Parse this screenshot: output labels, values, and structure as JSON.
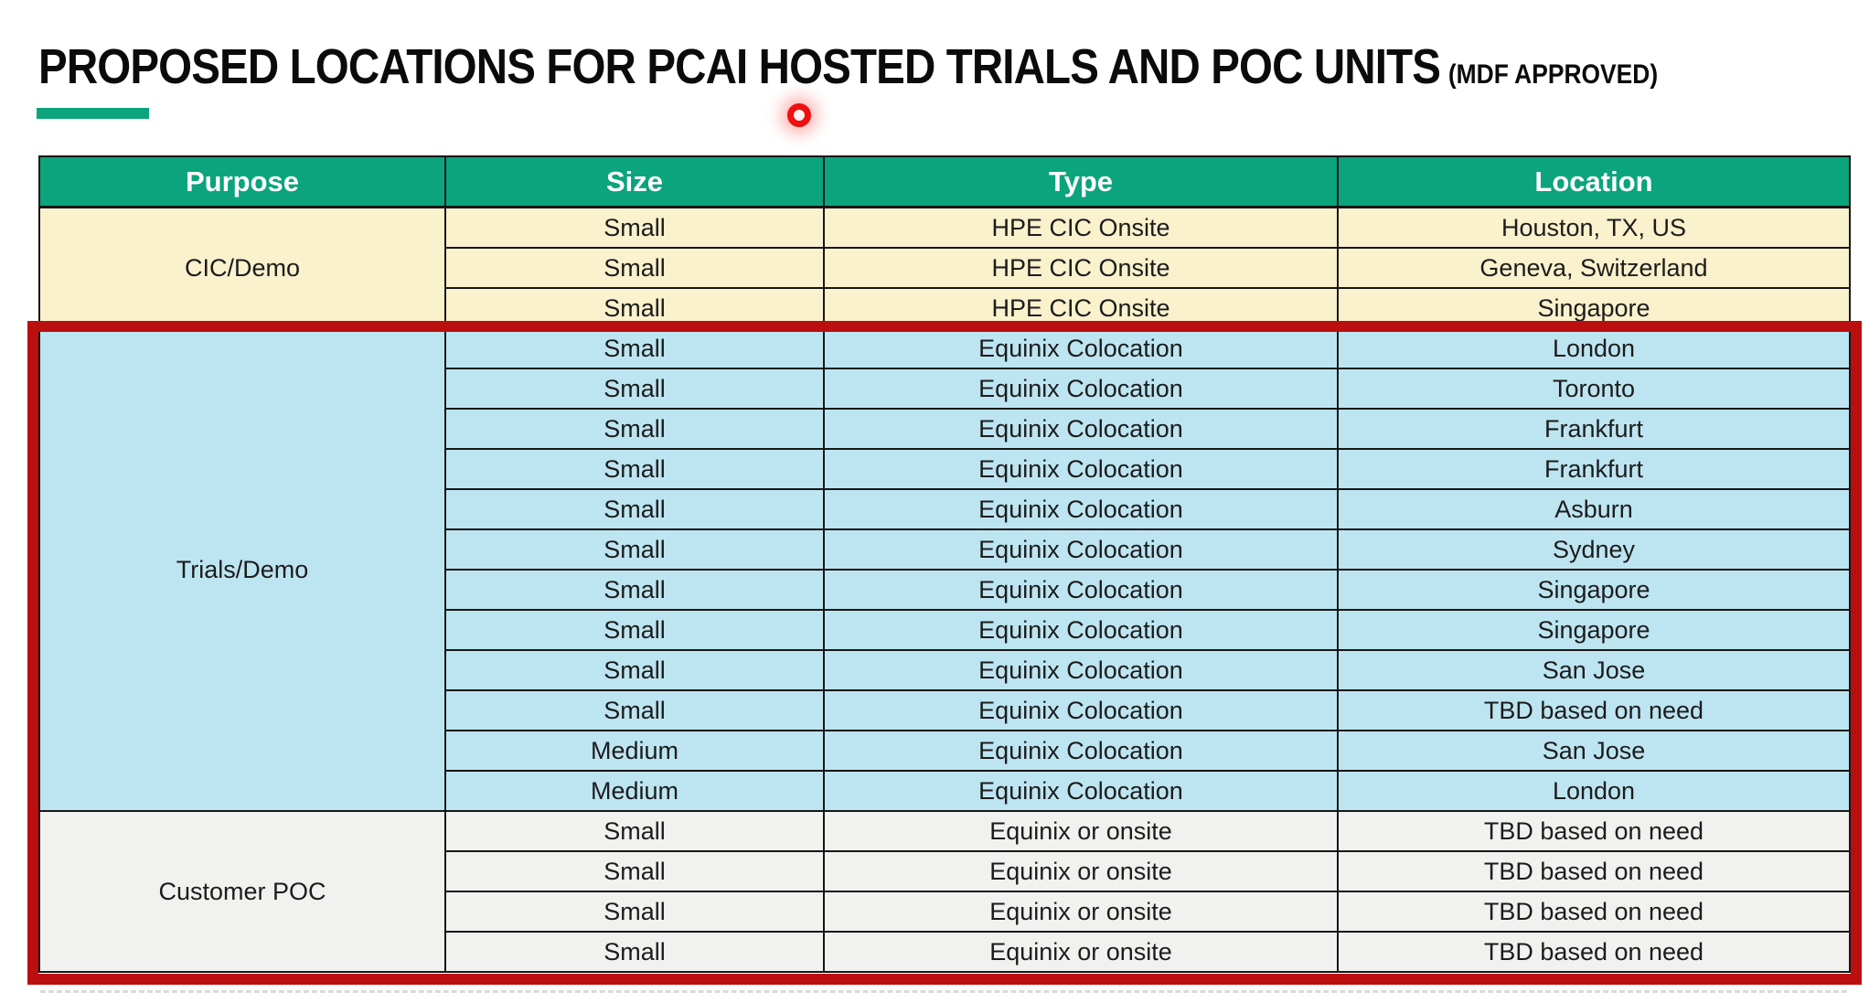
{
  "title": {
    "main": "PROPOSED LOCATIONS FOR PCAI HOSTED TRIALS AND POC UNITS",
    "suffix": "(MDF APPROVED)"
  },
  "colors": {
    "teal": "#0ba47c",
    "accent_green": "#0ba47c",
    "cream": "#faf1cd",
    "blue": "#bde5f1",
    "gray": "#f1f1f0",
    "red": "#bb0e0e"
  },
  "table": {
    "headers": [
      "Purpose",
      "Size",
      "Type",
      "Location"
    ],
    "sections": [
      {
        "purpose": "CIC/Demo",
        "theme": "cream",
        "highlighted": false,
        "rows": [
          [
            "Small",
            "HPE CIC Onsite",
            "Houston, TX, US"
          ],
          [
            "Small",
            "HPE CIC Onsite",
            "Geneva, Switzerland"
          ],
          [
            "Small",
            "HPE CIC Onsite",
            "Singapore"
          ]
        ]
      },
      {
        "purpose": "Trials/Demo",
        "theme": "blue",
        "highlighted": true,
        "rows": [
          [
            "Small",
            "Equinix Colocation",
            "London"
          ],
          [
            "Small",
            "Equinix Colocation",
            "Toronto"
          ],
          [
            "Small",
            "Equinix Colocation",
            "Frankfurt"
          ],
          [
            "Small",
            "Equinix Colocation",
            "Frankfurt"
          ],
          [
            "Small",
            "Equinix Colocation",
            "Asburn"
          ],
          [
            "Small",
            "Equinix Colocation",
            "Sydney"
          ],
          [
            "Small",
            "Equinix Colocation",
            "Singapore"
          ],
          [
            "Small",
            "Equinix Colocation",
            "Singapore"
          ],
          [
            "Small",
            "Equinix Colocation",
            "San Jose"
          ],
          [
            "Small",
            "Equinix Colocation",
            "TBD based on need"
          ],
          [
            "Medium",
            "Equinix Colocation",
            "San Jose"
          ],
          [
            "Medium",
            "Equinix Colocation",
            "London"
          ]
        ]
      },
      {
        "purpose": "Customer POC",
        "theme": "gray",
        "highlighted": true,
        "rows": [
          [
            "Small",
            "Equinix or onsite",
            "TBD based on need"
          ],
          [
            "Small",
            "Equinix or onsite",
            "TBD based on need"
          ],
          [
            "Small",
            "Equinix or onsite",
            "TBD based on need"
          ],
          [
            "Small",
            "Equinix or onsite",
            "TBD based on need"
          ]
        ]
      }
    ]
  }
}
